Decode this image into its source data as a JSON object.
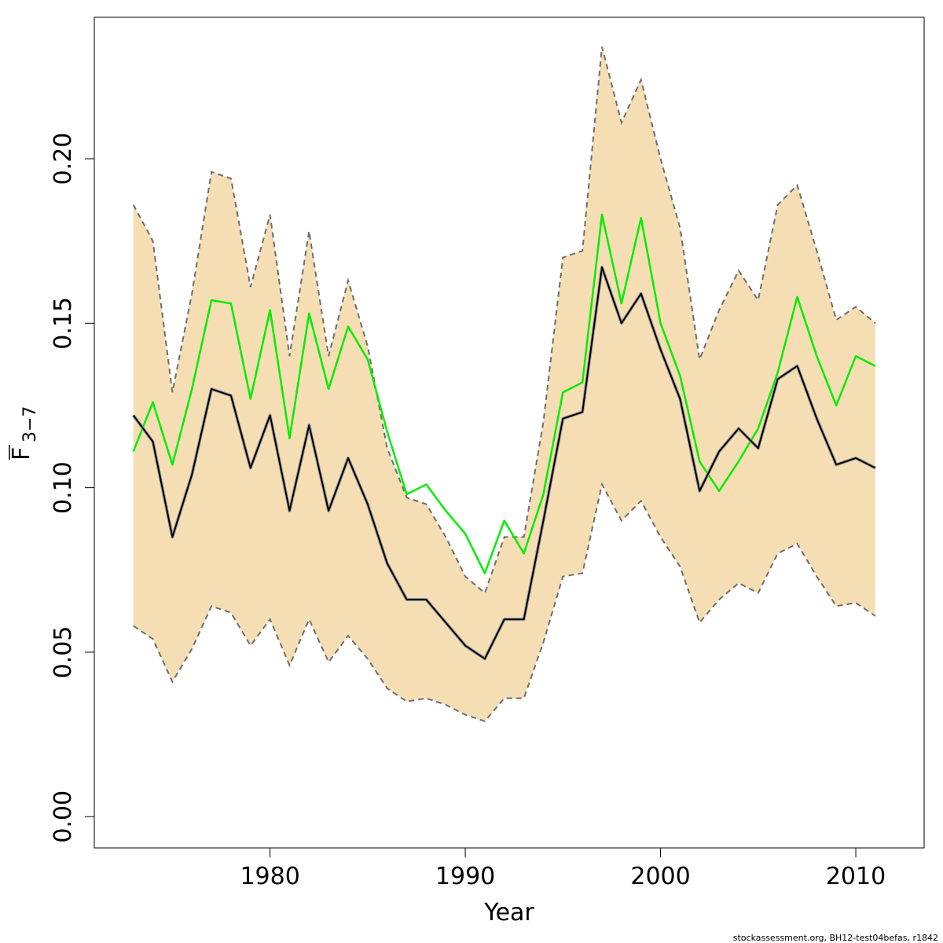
{
  "chart_data": {
    "type": "line",
    "xlabel": "Year",
    "ylabel_main": "F",
    "ylabel_sub": "3−7",
    "xlim": [
      1971,
      2013.5
    ],
    "ylim": [
      -0.0095,
      0.243
    ],
    "xticks": [
      1980,
      1990,
      2000,
      2010
    ],
    "xtick_labels": [
      "1980",
      "1990",
      "2000",
      "2010"
    ],
    "yticks": [
      0.0,
      0.05,
      0.1,
      0.15,
      0.2
    ],
    "ytick_labels": [
      "0.00",
      "0.05",
      "0.10",
      "0.15",
      "0.20"
    ],
    "x": [
      1973,
      1974,
      1975,
      1976,
      1977,
      1978,
      1979,
      1980,
      1981,
      1982,
      1983,
      1984,
      1985,
      1986,
      1987,
      1988,
      1989,
      1990,
      1991,
      1992,
      1993,
      1994,
      1995,
      1996,
      1997,
      1998,
      1999,
      2000,
      2001,
      2002,
      2003,
      2004,
      2005,
      2006,
      2007,
      2008,
      2009,
      2010,
      2011
    ],
    "band": {
      "fill": "#f5deb3",
      "edge": "#6e6e6e",
      "upper": [
        0.186,
        0.175,
        0.129,
        0.159,
        0.196,
        0.194,
        0.161,
        0.183,
        0.14,
        0.178,
        0.14,
        0.163,
        0.143,
        0.112,
        0.097,
        0.095,
        0.085,
        0.073,
        0.068,
        0.085,
        0.085,
        0.12,
        0.17,
        0.172,
        0.234,
        0.211,
        0.224,
        0.2,
        0.179,
        0.139,
        0.154,
        0.166,
        0.157,
        0.186,
        0.192,
        0.172,
        0.151,
        0.155,
        0.15
      ],
      "lower": [
        0.058,
        0.054,
        0.041,
        0.051,
        0.064,
        0.062,
        0.052,
        0.06,
        0.046,
        0.06,
        0.047,
        0.055,
        0.048,
        0.039,
        0.035,
        0.036,
        0.034,
        0.031,
        0.029,
        0.036,
        0.036,
        0.053,
        0.073,
        0.074,
        0.101,
        0.09,
        0.096,
        0.085,
        0.076,
        0.059,
        0.066,
        0.071,
        0.068,
        0.08,
        0.083,
        0.073,
        0.064,
        0.065,
        0.061
      ]
    },
    "series": [
      {
        "color": "#00ee00",
        "values": [
          0.111,
          0.126,
          0.107,
          0.13,
          0.157,
          0.156,
          0.127,
          0.154,
          0.115,
          0.153,
          0.13,
          0.149,
          0.139,
          0.117,
          0.098,
          0.101,
          0.093,
          0.086,
          0.074,
          0.09,
          0.08,
          0.098,
          0.129,
          0.132,
          0.183,
          0.156,
          0.182,
          0.15,
          0.134,
          0.108,
          0.099,
          0.108,
          0.118,
          0.135,
          0.158,
          0.14,
          0.125,
          0.14,
          0.137
        ]
      },
      {
        "color": "#000000",
        "values": [
          0.122,
          0.114,
          0.085,
          0.104,
          0.13,
          0.128,
          0.106,
          0.122,
          0.093,
          0.119,
          0.093,
          0.109,
          0.095,
          0.077,
          0.066,
          0.066,
          0.059,
          0.052,
          0.048,
          0.06,
          0.06,
          0.09,
          0.121,
          0.123,
          0.167,
          0.15,
          0.159,
          0.142,
          0.127,
          0.099,
          0.111,
          0.118,
          0.112,
          0.133,
          0.137,
          0.121,
          0.107,
          0.109,
          0.106
        ]
      }
    ]
  },
  "footer": "stockassessment.org, BH12-test04befas, r1842"
}
